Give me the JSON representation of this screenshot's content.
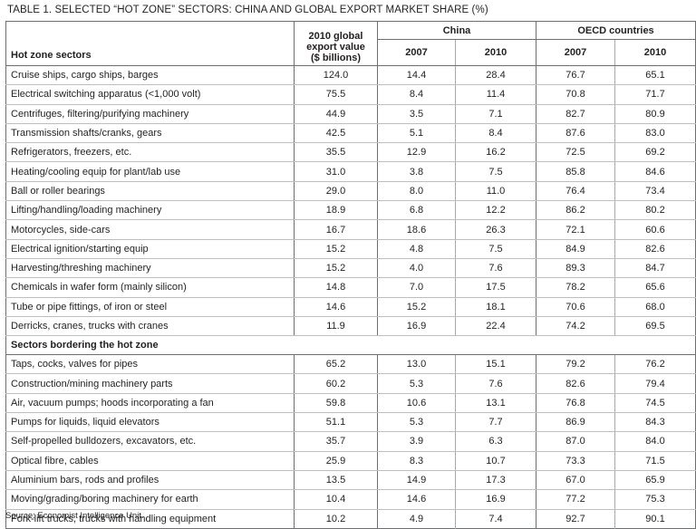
{
  "title": "TABLE 1. SELECTED “HOT ZONE” SECTORS: CHINA AND GLOBAL EXPORT MARKET SHARE (%)",
  "header": {
    "sector_col": "Hot zone sectors",
    "global_col_line1": "2010 global",
    "global_col_line2": "export value",
    "global_col_line3": "($ billions)",
    "china_group": "China",
    "oecd_group": "OECD countries",
    "y2007": "2007",
    "y2010": "2010"
  },
  "hot_zone_rows": [
    {
      "sector": "Cruise ships, cargo ships, barges",
      "global": "124.0",
      "cn07": "14.4",
      "cn10": "28.4",
      "oe07": "76.7",
      "oe10": "65.1"
    },
    {
      "sector": "Electrical switching apparatus (<1,000 volt)",
      "global": "75.5",
      "cn07": "8.4",
      "cn10": "11.4",
      "oe07": "70.8",
      "oe10": "71.7"
    },
    {
      "sector": "Centrifuges, filtering/purifying machinery",
      "global": "44.9",
      "cn07": "3.5",
      "cn10": "7.1",
      "oe07": "82.7",
      "oe10": "80.9"
    },
    {
      "sector": "Transmission shafts/cranks, gears",
      "global": "42.5",
      "cn07": "5.1",
      "cn10": "8.4",
      "oe07": "87.6",
      "oe10": "83.0"
    },
    {
      "sector": "Refrigerators, freezers, etc.",
      "global": "35.5",
      "cn07": "12.9",
      "cn10": "16.2",
      "oe07": "72.5",
      "oe10": "69.2"
    },
    {
      "sector": "Heating/cooling equip for plant/lab use",
      "global": "31.0",
      "cn07": "3.8",
      "cn10": "7.5",
      "oe07": "85.8",
      "oe10": "84.6"
    },
    {
      "sector": "Ball or roller bearings",
      "global": "29.0",
      "cn07": "8.0",
      "cn10": "11.0",
      "oe07": "76.4",
      "oe10": "73.4"
    },
    {
      "sector": "Lifting/handling/loading machinery",
      "global": "18.9",
      "cn07": "6.8",
      "cn10": "12.2",
      "oe07": "86.2",
      "oe10": "80.2"
    },
    {
      "sector": "Motorcycles, side-cars",
      "global": "16.7",
      "cn07": "18.6",
      "cn10": "26.3",
      "oe07": "72.1",
      "oe10": "60.6"
    },
    {
      "sector": "Electrical ignition/starting equip",
      "global": "15.2",
      "cn07": "4.8",
      "cn10": "7.5",
      "oe07": "84.9",
      "oe10": "82.6"
    },
    {
      "sector": "Harvesting/threshing machinery",
      "global": "15.2",
      "cn07": "4.0",
      "cn10": "7.6",
      "oe07": "89.3",
      "oe10": "84.7"
    },
    {
      "sector": "Chemicals in wafer form (mainly silicon)",
      "global": "14.8",
      "cn07": "7.0",
      "cn10": "17.5",
      "oe07": "78.2",
      "oe10": "65.6"
    },
    {
      "sector": "Tube or pipe fittings, of iron or steel",
      "global": "14.6",
      "cn07": "15.2",
      "cn10": "18.1",
      "oe07": "70.6",
      "oe10": "68.0"
    },
    {
      "sector": "Derricks, cranes, trucks with cranes",
      "global": "11.9",
      "cn07": "16.9",
      "cn10": "22.4",
      "oe07": "74.2",
      "oe10": "69.5"
    }
  ],
  "bordering_heading": "Sectors bordering the hot zone",
  "bordering_rows": [
    {
      "sector": "Taps, cocks, valves for pipes",
      "global": "65.2",
      "cn07": "13.0",
      "cn10": "15.1",
      "oe07": "79.2",
      "oe10": "76.2"
    },
    {
      "sector": "Construction/mining machinery parts",
      "global": "60.2",
      "cn07": "5.3",
      "cn10": "7.6",
      "oe07": "82.6",
      "oe10": "79.4"
    },
    {
      "sector": "Air, vacuum pumps; hoods incorporating a fan",
      "global": "59.8",
      "cn07": "10.6",
      "cn10": "13.1",
      "oe07": "76.8",
      "oe10": "74.5"
    },
    {
      "sector": "Pumps for liquids, liquid elevators",
      "global": "51.1",
      "cn07": "5.3",
      "cn10": "7.7",
      "oe07": "86.9",
      "oe10": "84.3"
    },
    {
      "sector": "Self-propelled bulldozers, excavators, etc.",
      "global": "35.7",
      "cn07": "3.9",
      "cn10": "6.3",
      "oe07": "87.0",
      "oe10": "84.0"
    },
    {
      "sector": "Optical fibre, cables",
      "global": "25.9",
      "cn07": "8.3",
      "cn10": "10.7",
      "oe07": "73.3",
      "oe10": "71.5"
    },
    {
      "sector": "Aluminium bars, rods and profiles",
      "global": "13.5",
      "cn07": "14.9",
      "cn10": "17.3",
      "oe07": "67.0",
      "oe10": "65.9"
    },
    {
      "sector": "Moving/grading/boring machinery for earth",
      "global": "10.4",
      "cn07": "14.6",
      "cn10": "16.9",
      "oe07": "77.2",
      "oe10": "75.3"
    },
    {
      "sector": "Fork-lift trucks, trucks with handling equipment",
      "global": "10.2",
      "cn07": "4.9",
      "cn10": "7.4",
      "oe07": "92.7",
      "oe10": "90.1"
    }
  ],
  "source": "Source: Economist Intelligence Unit."
}
